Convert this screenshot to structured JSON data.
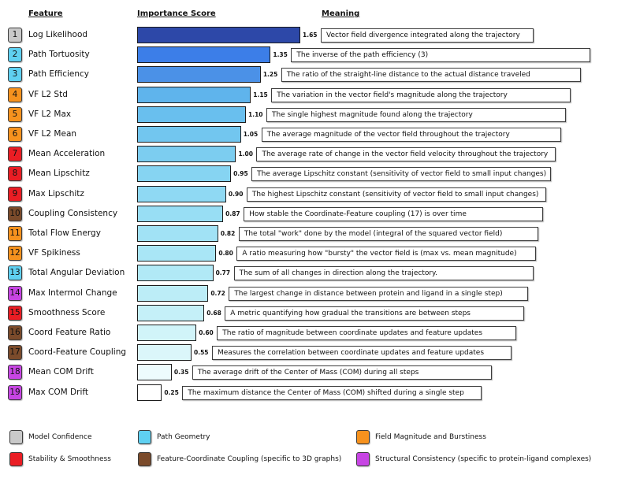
{
  "headers": {
    "meaning": "Meaning"
  },
  "chart_data": {
    "type": "bar",
    "xlabel": "Importance Score",
    "ylabel": "Feature",
    "xlim": [
      0,
      1.65
    ],
    "categories": [
      "Log Likelihood",
      "Path Tortuosity",
      "Path Efficiency",
      "VF L2 Std",
      "VF L2 Max",
      "VF L2 Mean",
      "Mean Acceleration",
      "Mean Lipschitz",
      "Max Lipschitz",
      "Coupling Consistency",
      "Total Flow Energy",
      "VF Spikiness",
      "Total Angular Deviation",
      "Max Intermol Change",
      "Smoothness Score",
      "Coord Feature Ratio",
      "Coord-Feature Coupling",
      "Mean COM Drift",
      "Max COM Drift"
    ],
    "values": [
      1.65,
      1.35,
      1.25,
      1.15,
      1.1,
      1.05,
      1.0,
      0.95,
      0.9,
      0.87,
      0.82,
      0.8,
      0.77,
      0.72,
      0.68,
      0.6,
      0.55,
      0.35,
      0.25
    ],
    "value_labels": [
      "1.65",
      "1.35",
      "1.25",
      "1.15",
      "1.10",
      "1.05",
      "1.00",
      "0.95",
      "0.90",
      "0.87",
      "0.82",
      "0.80",
      "0.77",
      "0.72",
      "0.68",
      "0.60",
      "0.55",
      "0.35",
      "0.25"
    ],
    "ranks": [
      1,
      2,
      3,
      4,
      5,
      6,
      7,
      8,
      9,
      10,
      11,
      12,
      13,
      14,
      15,
      16,
      17,
      18,
      19
    ],
    "meanings": [
      "Vector field divergence integrated along the trajectory",
      "The inverse of the path efficiency (3)",
      "The ratio of the straight-line distance to the actual distance traveled",
      "The variation in the vector field's magnitude along the trajectory",
      "The single highest magnitude found along the trajectory",
      "The average magnitude of the vector field throughout the trajectory",
      "The average rate of change in the vector field velocity throughout the trajectory",
      "The average Lipschitz constant (sensitivity of vector field to small input changes)",
      "The highest Lipschitz constant (sensitivity of vector field to small input changes)",
      "How stable the Coordinate-Feature coupling (17) is over time",
      "The total \"work\" done by the model (integral of the squared vector field)",
      "A ratio measuring how \"bursty\" the vector field is (max vs. mean magnitude)",
      "The sum of all changes in direction along the trajectory.",
      "The largest change in distance between protein and ligand in a single step)",
      "A metric quantifying how gradual the transitions are between steps",
      "The ratio of magnitude between coordinate updates and feature updates",
      "Measures the correlation between coordinate updates and feature updates",
      "The average drift of the Center of Mass (COM) during all steps",
      "The maximum distance the Center of Mass (COM) shifted during a single step"
    ],
    "bar_colors": [
      "#2d48a8",
      "#3c7ee8",
      "#4b91e7",
      "#5fb4ec",
      "#69bfee",
      "#72c6ef",
      "#7ccdf0",
      "#86d4f2",
      "#8fd9f3",
      "#98def4",
      "#a1e2f5",
      "#a9e6f6",
      "#b1e9f6",
      "#bcedf7",
      "#c5f0f8",
      "#d1f4f9",
      "#dbf6fa",
      "#edfbfd",
      "#ffffff"
    ],
    "rank_colors": [
      "#c9c9c9",
      "#5fd0f1",
      "#5fd0f1",
      "#f6921e",
      "#f6921e",
      "#f6921e",
      "#ea1d24",
      "#ea1d24",
      "#ea1d24",
      "#7b4b2b",
      "#f6921e",
      "#f6921e",
      "#5fd0f1",
      "#c745e3",
      "#ea1d24",
      "#7b4b2b",
      "#7b4b2b",
      "#c745e3",
      "#c745e3"
    ]
  },
  "legend": [
    {
      "label": "Model Confidence",
      "color": "#c9c9c9"
    },
    {
      "label": "Path Geometry",
      "color": "#5fd0f1"
    },
    {
      "label": "Field Magnitude and Burstiness",
      "color": "#f6921e"
    },
    {
      "label": "Stability & Smoothness",
      "color": "#ea1d24"
    },
    {
      "label": "Feature-Coordinate Coupling (specific to 3D graphs)",
      "color": "#7b4b2b"
    },
    {
      "label": "Structural Consistency (specific to protein-ligand complexes)",
      "color": "#c745e3"
    }
  ]
}
